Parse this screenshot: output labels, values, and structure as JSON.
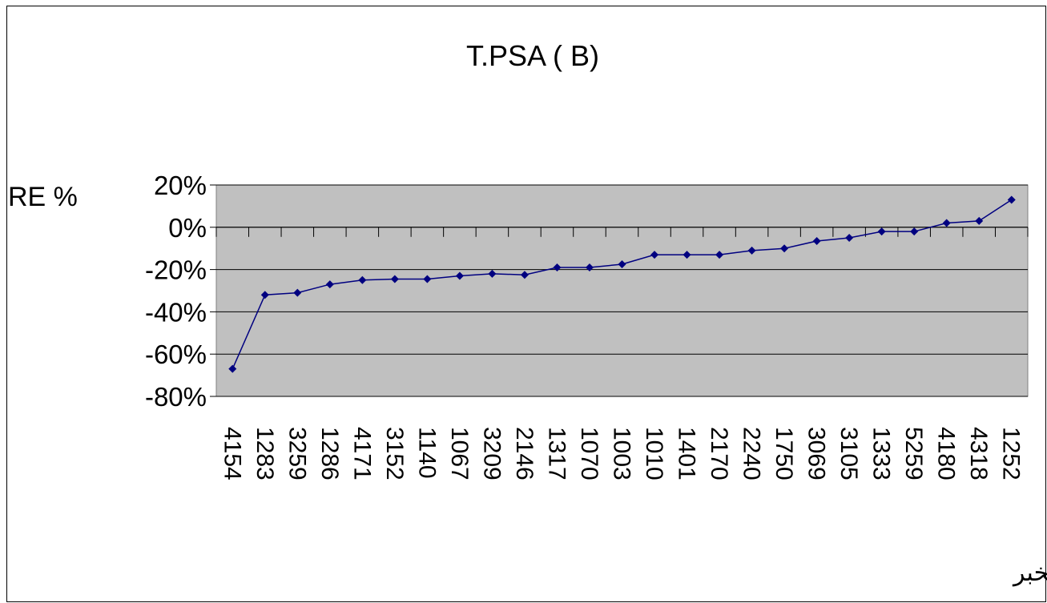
{
  "chart_data": {
    "type": "line",
    "title": "T.PSA ( B)",
    "y_label": "RE %",
    "x_label": "رمز المخبر",
    "categories": [
      "4154",
      "1283",
      "3259",
      "1286",
      "4171",
      "3152",
      "1140",
      "1067",
      "3209",
      "2146",
      "1317",
      "1070",
      "1003",
      "1010",
      "1401",
      "2170",
      "2240",
      "1750",
      "3069",
      "3105",
      "1333",
      "5259",
      "4180",
      "4318",
      "1252"
    ],
    "series": [
      {
        "name": "T.PSA ( B)",
        "color": "#000080",
        "values": [
          -67,
          -32,
          -31,
          -27,
          -25,
          -24.5,
          -24.5,
          -23,
          -22,
          -22.5,
          -19,
          -19,
          -17.5,
          -13,
          -13,
          -13,
          -11,
          -10,
          -6.5,
          -5,
          -2,
          -2,
          2,
          3,
          13
        ]
      }
    ],
    "ylim": [
      -80,
      20
    ],
    "yticks": [
      {
        "value": -80,
        "label": "-80%"
      },
      {
        "value": -60,
        "label": "-60%"
      },
      {
        "value": -40,
        "label": "-40%"
      },
      {
        "value": -20,
        "label": "-20%"
      },
      {
        "value": 0,
        "label": "0%"
      },
      {
        "value": 20,
        "label": "20%"
      }
    ],
    "grid": true
  }
}
